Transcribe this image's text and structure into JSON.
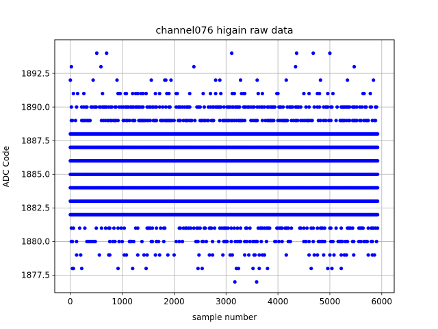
{
  "chart_data": {
    "type": "scatter",
    "title": "channel076 higain raw data",
    "xlabel": "sample number",
    "ylabel": "ADC Code",
    "xlim": [
      -300,
      6240
    ],
    "ylim": [
      1876.2,
      1895.0
    ],
    "x_ticks": [
      0,
      1000,
      2000,
      3000,
      4000,
      5000,
      6000
    ],
    "x_tick_labels": [
      "0",
      "1000",
      "2000",
      "3000",
      "4000",
      "5000",
      "6000"
    ],
    "y_ticks": [
      1877.5,
      1880.0,
      1882.5,
      1885.0,
      1887.5,
      1890.0,
      1892.5
    ],
    "y_tick_labels": [
      "1877.5",
      "1880.0",
      "1882.5",
      "1885.0",
      "1887.5",
      "1890.0",
      "1892.5"
    ],
    "grid": true,
    "marker_color": "#0000ff",
    "series": [
      {
        "x_range": [
          0,
          5920
        ],
        "dense_levels": [
          1882,
          1883,
          1884,
          1885,
          1886,
          1887,
          1888
        ],
        "sparse_levels": [
          {
            "y": 1890,
            "density": 0.55
          },
          {
            "y": 1889,
            "density": 0.5
          },
          {
            "y": 1881,
            "density": 0.32
          },
          {
            "y": 1880,
            "density": 0.3
          },
          {
            "y": 1891,
            "density": 0.14
          },
          {
            "y": 1879,
            "density": 0.12
          },
          {
            "y": 1892,
            "density": 0.06
          },
          {
            "y": 1878,
            "density": 0.05
          }
        ],
        "outliers": [
          {
            "x": 20,
            "y": 1893
          },
          {
            "x": 510,
            "y": 1894
          },
          {
            "x": 590,
            "y": 1893
          },
          {
            "x": 700,
            "y": 1894
          },
          {
            "x": 2380,
            "y": 1893
          },
          {
            "x": 3110,
            "y": 1894
          },
          {
            "x": 4360,
            "y": 1894
          },
          {
            "x": 4340,
            "y": 1893
          },
          {
            "x": 4680,
            "y": 1894
          },
          {
            "x": 5000,
            "y": 1894
          },
          {
            "x": 5470,
            "y": 1893
          },
          {
            "x": 3170,
            "y": 1877
          },
          {
            "x": 3590,
            "y": 1877
          }
        ]
      }
    ]
  }
}
